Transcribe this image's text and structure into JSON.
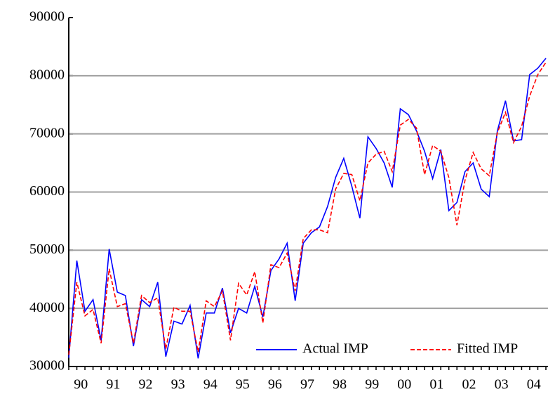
{
  "chart_data": {
    "type": "line",
    "x": [
      1990,
      1990.25,
      1990.5,
      1990.75,
      1991,
      1991.25,
      1991.5,
      1991.75,
      1992,
      1992.25,
      1992.5,
      1992.75,
      1993,
      1993.25,
      1993.5,
      1993.75,
      1994,
      1994.25,
      1994.5,
      1994.75,
      1995,
      1995.25,
      1995.5,
      1995.75,
      1996,
      1996.25,
      1996.5,
      1996.75,
      1997,
      1997.25,
      1997.5,
      1997.75,
      1998,
      1998.25,
      1998.5,
      1998.75,
      1999,
      1999.25,
      1999.5,
      1999.75,
      2000,
      2000.25,
      2000.5,
      2000.75,
      2001,
      2001.25,
      2001.5,
      2001.75,
      2002,
      2002.25,
      2002.5,
      2002.75,
      2003,
      2003.25,
      2003.5,
      2003.75,
      2004,
      2004.25,
      2004.5,
      2004.75
    ],
    "series": [
      {
        "name": "Actual IMP",
        "color": "#0000ff",
        "line_style": "solid",
        "values": [
          31500,
          48200,
          39500,
          41500,
          34500,
          50200,
          42800,
          42200,
          33500,
          41500,
          40300,
          44500,
          31700,
          37800,
          37300,
          40500,
          31400,
          39200,
          39200,
          43500,
          35800,
          40000,
          39200,
          43800,
          38500,
          46500,
          48500,
          51200,
          41300,
          51200,
          53000,
          54000,
          57500,
          62500,
          65800,
          61000,
          55500,
          69500,
          67500,
          65000,
          60800,
          74300,
          73300,
          70500,
          67000,
          62300,
          67300,
          56800,
          58200,
          63500,
          65000,
          60500,
          59200,
          70500,
          75700,
          68800,
          69000,
          80200,
          81300,
          83000
        ]
      },
      {
        "name": "Fitted IMP",
        "color": "#ff0000",
        "line_style": "dashed",
        "values": [
          32000,
          44500,
          38700,
          39800,
          34000,
          46800,
          40300,
          40800,
          34000,
          42200,
          41000,
          41800,
          33000,
          40200,
          39500,
          39500,
          32500,
          41300,
          40300,
          43000,
          34500,
          44300,
          42300,
          46300,
          37500,
          47500,
          47000,
          49500,
          43000,
          52000,
          53500,
          53500,
          53000,
          60500,
          63200,
          63000,
          58500,
          65000,
          66500,
          67000,
          63500,
          71500,
          72500,
          71000,
          63000,
          68000,
          67000,
          62500,
          54300,
          62000,
          66800,
          64000,
          62800,
          70200,
          73700,
          68500,
          71300,
          76500,
          80200,
          82300
        ]
      }
    ],
    "xlim": [
      1990,
      2004.75
    ],
    "xticks": [
      {
        "value": 1990.375,
        "label": "90"
      },
      {
        "value": 1991.375,
        "label": "91"
      },
      {
        "value": 1992.375,
        "label": "92"
      },
      {
        "value": 1993.375,
        "label": "93"
      },
      {
        "value": 1994.375,
        "label": "94"
      },
      {
        "value": 1995.375,
        "label": "95"
      },
      {
        "value": 1996.375,
        "label": "96"
      },
      {
        "value": 1997.375,
        "label": "97"
      },
      {
        "value": 1998.375,
        "label": "98"
      },
      {
        "value": 1999.375,
        "label": "99"
      },
      {
        "value": 2000.375,
        "label": "00"
      },
      {
        "value": 2001.375,
        "label": "01"
      },
      {
        "value": 2002.375,
        "label": "02"
      },
      {
        "value": 2003.375,
        "label": "03"
      },
      {
        "value": 2004.375,
        "label": "04"
      }
    ],
    "ylim": [
      30000,
      90000
    ],
    "yticks": [
      30000,
      40000,
      50000,
      60000,
      70000,
      80000,
      90000
    ],
    "grid": true,
    "legend": "lower right"
  }
}
